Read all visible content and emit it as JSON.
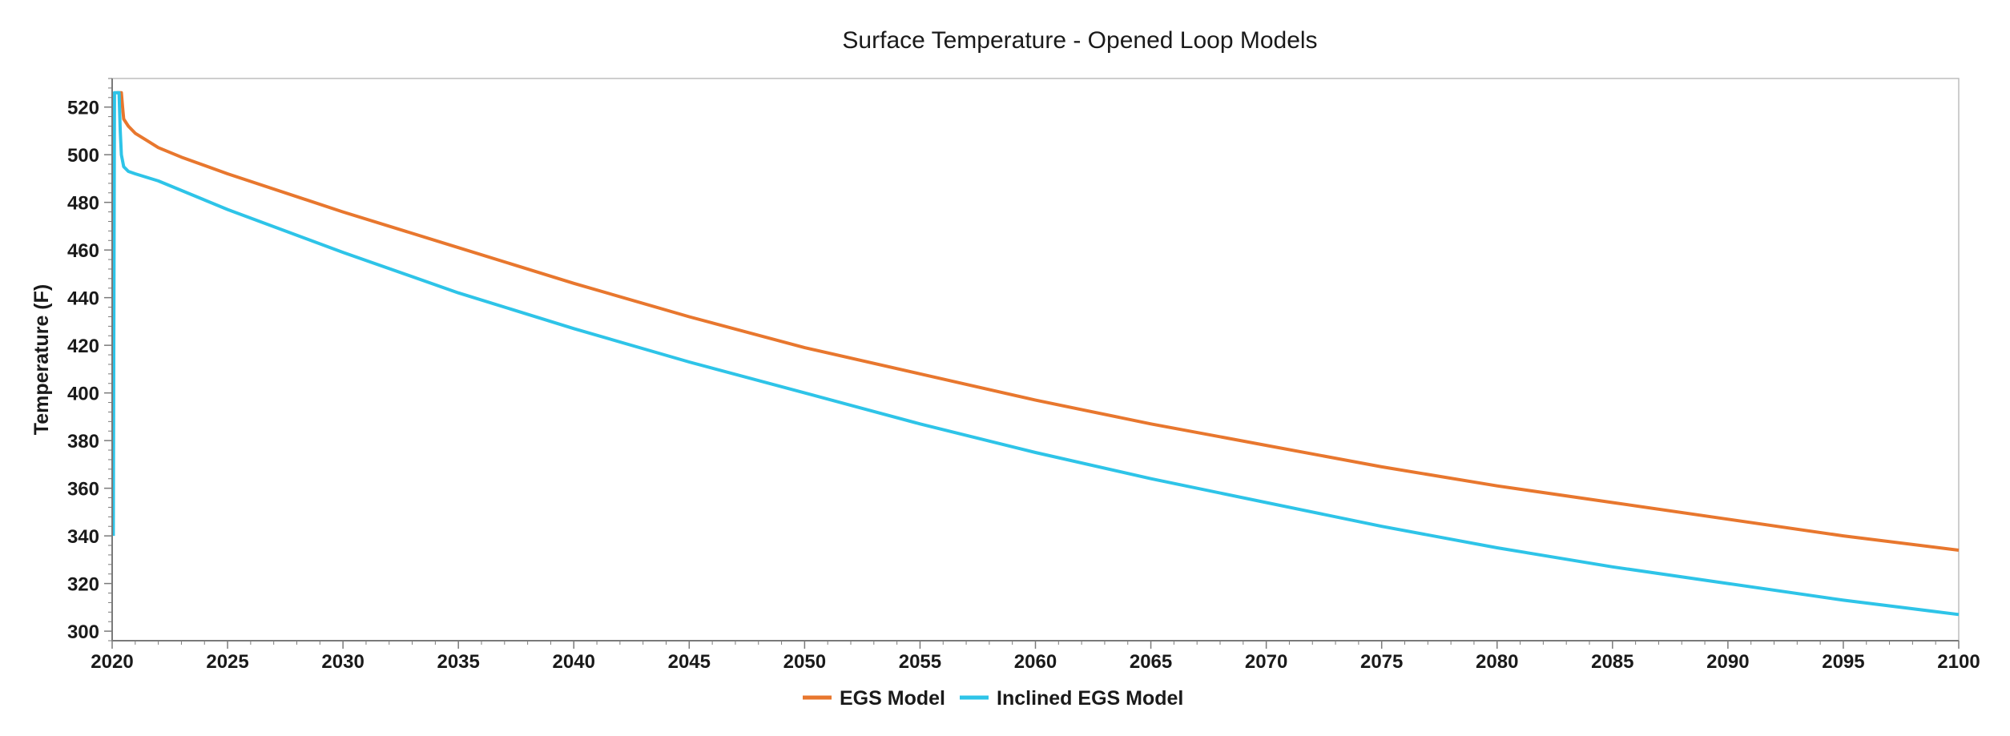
{
  "chart_data": {
    "type": "line",
    "title": "Surface Temperature - Opened Loop Models",
    "xlabel": "",
    "ylabel": "Temperature (F)",
    "xlim": [
      2020,
      2100
    ],
    "ylim": [
      296,
      532
    ],
    "x_ticks": [
      2020,
      2025,
      2030,
      2035,
      2040,
      2045,
      2050,
      2055,
      2060,
      2065,
      2070,
      2075,
      2080,
      2085,
      2090,
      2095,
      2100
    ],
    "x_tick_labels": [
      "2020",
      "2025",
      "2030",
      "2035",
      "2040",
      "2045",
      "2050",
      "2055",
      "2060",
      "2065",
      "2070",
      "2075",
      "2080",
      "2085",
      "2090",
      "2095",
      "2100"
    ],
    "y_ticks": [
      300,
      320,
      340,
      360,
      380,
      400,
      420,
      440,
      460,
      480,
      500,
      520
    ],
    "y_tick_labels": [
      "300",
      "320",
      "340",
      "360",
      "380",
      "400",
      "420",
      "440",
      "460",
      "480",
      "500",
      "520"
    ],
    "grid": false,
    "legend_position": "bottom-center",
    "series": [
      {
        "name": "EGS Model",
        "color": "#E8772E",
        "x": [
          2020.2,
          2020.4,
          2020.45,
          2020.5,
          2020.7,
          2021,
          2021.5,
          2022,
          2023,
          2025,
          2030,
          2035,
          2040,
          2045,
          2050,
          2055,
          2060,
          2065,
          2070,
          2075,
          2080,
          2085,
          2090,
          2095,
          2100
        ],
        "values": [
          526,
          526,
          520,
          515,
          512,
          509,
          506,
          503,
          499,
          492,
          476,
          461,
          446,
          432,
          419,
          408,
          397,
          387,
          378,
          369,
          361,
          354,
          347,
          340,
          334
        ]
      },
      {
        "name": "Inclined EGS Model",
        "color": "#2EC4E8",
        "x": [
          2020.05,
          2020.1,
          2020.2,
          2020.3,
          2020.35,
          2020.4,
          2020.5,
          2020.7,
          2021,
          2022,
          2025,
          2030,
          2035,
          2040,
          2045,
          2050,
          2055,
          2060,
          2065,
          2070,
          2075,
          2080,
          2085,
          2090,
          2095,
          2100
        ],
        "values": [
          340,
          526,
          526,
          526,
          510,
          500,
          495,
          493,
          492,
          489,
          477,
          459,
          442,
          427,
          413,
          400,
          387,
          375,
          364,
          354,
          344,
          335,
          327,
          320,
          313,
          307
        ]
      }
    ]
  }
}
